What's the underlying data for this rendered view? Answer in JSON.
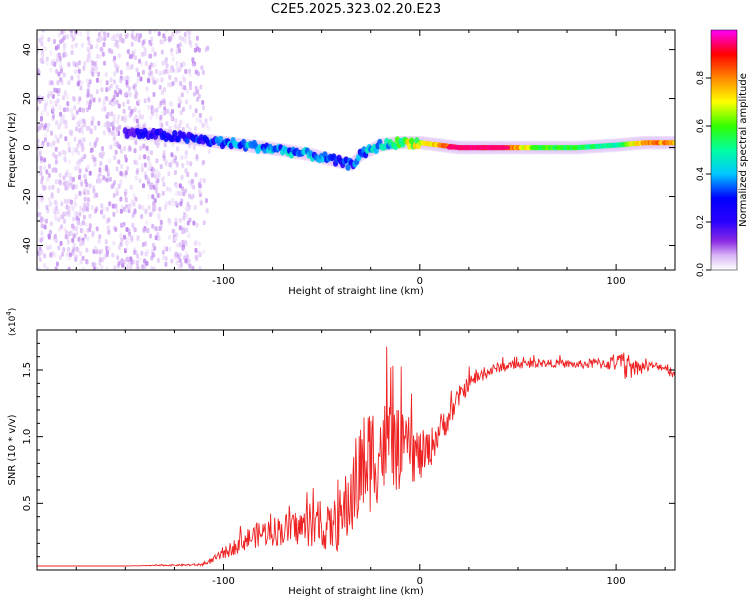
{
  "title": "C2E5.2025.323.02.20.E23",
  "chart_data": [
    {
      "type": "heatmap",
      "name": "spectrogram",
      "xlabel": "Height of straight line (km)",
      "ylabel": "Frequency (Hz)",
      "xlim": [
        -195,
        130
      ],
      "ylim": [
        -50,
        48
      ],
      "xticks": [
        -100,
        0,
        100
      ],
      "yticks": [
        -40,
        -20,
        0,
        20,
        40
      ],
      "xtick_labels": [
        "-100",
        "0",
        "100"
      ],
      "ytick_labels": [
        "-40",
        "-20",
        "0",
        "20",
        "40"
      ],
      "colorbar": {
        "label": "Normalized spectral amplitude",
        "range": [
          0,
          1
        ],
        "ticks": [
          0.0,
          0.2,
          0.4,
          0.6,
          0.8
        ],
        "tick_labels": [
          "0.0",
          "0.2",
          "0.4",
          "0.6",
          "0.8"
        ],
        "colors": [
          "#ffffff",
          "#d9b6f5",
          "#8a2be2",
          "#2b00ff",
          "#0000ff",
          "#00c8ff",
          "#00ffa0",
          "#33ff00",
          "#ffff00",
          "#ff8800",
          "#ff0000",
          "#ff00ff"
        ]
      },
      "ridge": [
        {
          "x": -150,
          "f": 6,
          "amp": 0.28
        },
        {
          "x": -130,
          "f": 5,
          "amp": 0.32
        },
        {
          "x": -110,
          "f": 3,
          "amp": 0.35
        },
        {
          "x": -90,
          "f": 1,
          "amp": 0.45
        },
        {
          "x": -70,
          "f": -1,
          "amp": 0.45
        },
        {
          "x": -55,
          "f": -3,
          "amp": 0.42
        },
        {
          "x": -45,
          "f": -5,
          "amp": 0.38
        },
        {
          "x": -35,
          "f": -7,
          "amp": 0.36
        },
        {
          "x": -30,
          "f": -3,
          "amp": 0.45
        },
        {
          "x": -20,
          "f": 1,
          "amp": 0.5
        },
        {
          "x": -10,
          "f": 2,
          "amp": 0.6
        },
        {
          "x": 0,
          "f": 2,
          "amp": 0.7
        },
        {
          "x": 20,
          "f": 0,
          "amp": 0.95
        },
        {
          "x": 40,
          "f": 0,
          "amp": 0.95
        },
        {
          "x": 60,
          "f": 0,
          "amp": 0.65
        },
        {
          "x": 80,
          "f": 0,
          "amp": 0.6
        },
        {
          "x": 100,
          "f": 1,
          "amp": 0.55
        },
        {
          "x": 115,
          "f": 2,
          "amp": 0.85
        },
        {
          "x": 130,
          "f": 2,
          "amp": 0.8
        }
      ],
      "noise_region_x": [
        -195,
        -105
      ]
    },
    {
      "type": "line",
      "name": "snr",
      "xlabel": "Height of straight line (km)",
      "ylabel": "SNR (10 * v/v)",
      "multiplier_label": "(x10",
      "multiplier_exp": "4",
      "multiplier_close": ")",
      "xlim": [
        -195,
        130
      ],
      "ylim": [
        0,
        1.8
      ],
      "xticks": [
        -100,
        0,
        100
      ],
      "yticks": [
        0.5,
        1.0,
        1.5
      ],
      "xtick_labels": [
        "-100",
        "0",
        "100"
      ],
      "ytick_labels": [
        "0.5",
        "1.0",
        "1.5"
      ],
      "color": "#ee2222",
      "series": [
        {
          "name": "SNR",
          "x": [
            -195,
            -150,
            -110,
            -100,
            -90,
            -80,
            -70,
            -60,
            -55,
            -50,
            -45,
            -40,
            -35,
            -30,
            -25,
            -20,
            -15,
            -10,
            -5,
            0,
            5,
            10,
            15,
            20,
            25,
            30,
            40,
            50,
            60,
            70,
            80,
            90,
            100,
            105,
            110,
            120,
            125,
            128,
            130
          ],
          "y": [
            0.03,
            0.03,
            0.04,
            0.12,
            0.22,
            0.28,
            0.3,
            0.32,
            0.33,
            0.3,
            0.32,
            0.38,
            0.55,
            0.75,
            0.85,
            0.9,
            0.95,
            0.88,
            0.9,
            0.85,
            0.9,
            1.05,
            1.15,
            1.3,
            1.4,
            1.45,
            1.52,
            1.54,
            1.55,
            1.55,
            1.54,
            1.55,
            1.55,
            1.53,
            1.52,
            1.53,
            1.52,
            1.5,
            1.45
          ],
          "jitter": [
            0,
            0,
            0.01,
            0.04,
            0.08,
            0.1,
            0.12,
            0.14,
            0.16,
            0.15,
            0.18,
            0.25,
            0.32,
            0.4,
            0.42,
            0.38,
            0.35,
            0.3,
            0.25,
            0.2,
            0.15,
            0.12,
            0.1,
            0.08,
            0.06,
            0.05,
            0.04,
            0.03,
            0.03,
            0.03,
            0.03,
            0.04,
            0.06,
            0.12,
            0.06,
            0.03,
            0.03,
            0.06,
            0.03
          ]
        }
      ]
    }
  ]
}
